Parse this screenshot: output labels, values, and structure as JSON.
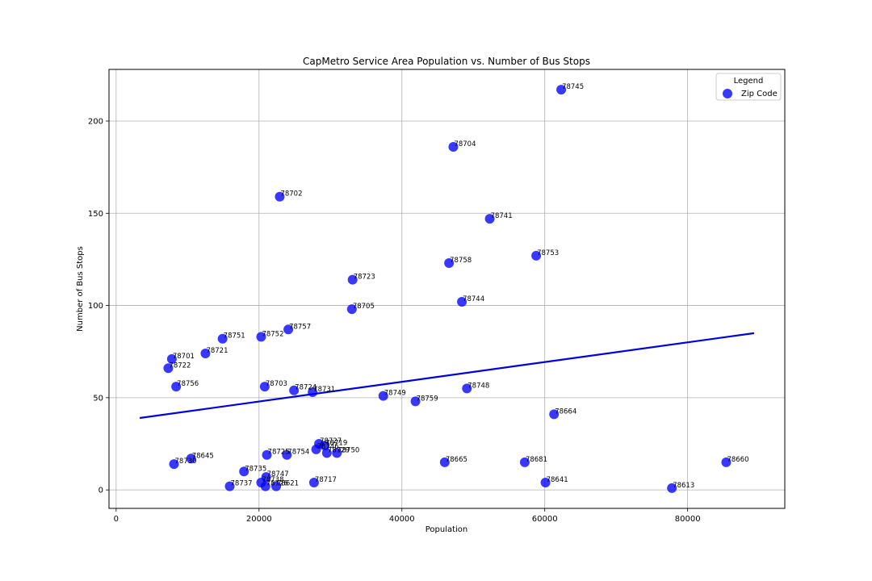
{
  "chart_data": {
    "type": "scatter",
    "title": "CapMetro Service Area Population vs. Number of Bus Stops",
    "xlabel": "Population",
    "ylabel": "Number of Bus Stops",
    "xlim": [
      -1000,
      93600
    ],
    "ylim": [
      -10,
      228
    ],
    "xticks": [
      0,
      20000,
      40000,
      60000,
      80000
    ],
    "yticks": [
      0,
      50,
      100,
      150,
      200
    ],
    "grid": true,
    "legend": {
      "title": "Legend",
      "position": "top-right",
      "entries": [
        "Zip Code"
      ]
    },
    "point_color": "#0000ff",
    "trend_color": "#0000dd",
    "trend_line": {
      "x": [
        3300,
        89300
      ],
      "y": [
        39,
        85
      ]
    },
    "points": [
      {
        "label": "78745",
        "x": 62300,
        "y": 217
      },
      {
        "label": "78704",
        "x": 47200,
        "y": 186
      },
      {
        "label": "78702",
        "x": 22900,
        "y": 159
      },
      {
        "label": "78741",
        "x": 52300,
        "y": 147
      },
      {
        "label": "78753",
        "x": 58800,
        "y": 127
      },
      {
        "label": "78758",
        "x": 46600,
        "y": 123
      },
      {
        "label": "78723",
        "x": 33100,
        "y": 114
      },
      {
        "label": "78744",
        "x": 48400,
        "y": 102
      },
      {
        "label": "78705",
        "x": 33000,
        "y": 98
      },
      {
        "label": "78757",
        "x": 24100,
        "y": 87
      },
      {
        "label": "78751",
        "x": 14900,
        "y": 82
      },
      {
        "label": "78752",
        "x": 20300,
        "y": 83
      },
      {
        "label": "78721",
        "x": 12500,
        "y": 74
      },
      {
        "label": "78701",
        "x": 7800,
        "y": 71
      },
      {
        "label": "78722",
        "x": 7300,
        "y": 66
      },
      {
        "label": "78756",
        "x": 8400,
        "y": 56
      },
      {
        "label": "78703",
        "x": 20800,
        "y": 56
      },
      {
        "label": "78724",
        "x": 24900,
        "y": 54
      },
      {
        "label": "78731",
        "x": 27500,
        "y": 53
      },
      {
        "label": "78749",
        "x": 37400,
        "y": 51
      },
      {
        "label": "78748",
        "x": 49100,
        "y": 55
      },
      {
        "label": "78759",
        "x": 41900,
        "y": 48
      },
      {
        "label": "78664",
        "x": 61300,
        "y": 41
      },
      {
        "label": "78727",
        "x": 28400,
        "y": 25
      },
      {
        "label": "78719",
        "x": 29200,
        "y": 24
      },
      {
        "label": "78746",
        "x": 28000,
        "y": 22
      },
      {
        "label": "78729",
        "x": 29500,
        "y": 20
      },
      {
        "label": "78750",
        "x": 30900,
        "y": 20
      },
      {
        "label": "78725",
        "x": 21100,
        "y": 19
      },
      {
        "label": "78754",
        "x": 23900,
        "y": 19
      },
      {
        "label": "78645",
        "x": 10500,
        "y": 17
      },
      {
        "label": "78730",
        "x": 8100,
        "y": 14
      },
      {
        "label": "78665",
        "x": 46000,
        "y": 15
      },
      {
        "label": "78681",
        "x": 57200,
        "y": 15
      },
      {
        "label": "78660",
        "x": 85400,
        "y": 15
      },
      {
        "label": "78735",
        "x": 17900,
        "y": 10
      },
      {
        "label": "78747",
        "x": 21000,
        "y": 7
      },
      {
        "label": "78738",
        "x": 20300,
        "y": 4
      },
      {
        "label": "78726",
        "x": 20900,
        "y": 2
      },
      {
        "label": "78621",
        "x": 22400,
        "y": 2
      },
      {
        "label": "78717",
        "x": 27700,
        "y": 4
      },
      {
        "label": "78737",
        "x": 15900,
        "y": 2
      },
      {
        "label": "78641",
        "x": 60100,
        "y": 4
      },
      {
        "label": "78613",
        "x": 77800,
        "y": 1
      }
    ]
  }
}
